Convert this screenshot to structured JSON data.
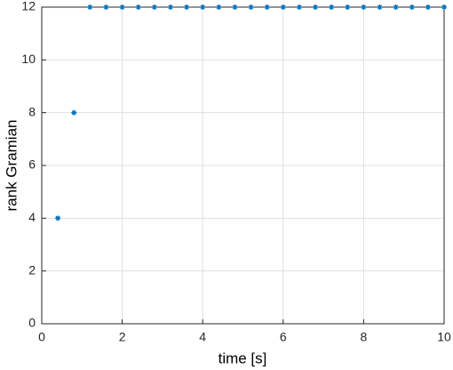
{
  "chart_data": {
    "type": "scatter",
    "x_label": "time [s]",
    "y_label": "rank Gramian",
    "series": [
      {
        "color": "#0072bd",
        "x": [
          0.4,
          0.8,
          1.2,
          1.6,
          2,
          2.4,
          2.8,
          3.2,
          3.6,
          4,
          4.4,
          4.8,
          5.2,
          5.6,
          6,
          6.4,
          6.8,
          7.2,
          7.6,
          8,
          8.4,
          8.8,
          9.2,
          9.6,
          10
        ],
        "values": [
          4,
          8,
          12,
          12,
          12,
          12,
          12,
          12,
          12,
          12,
          12,
          12,
          12,
          12,
          12,
          12,
          12,
          12,
          12,
          12,
          12,
          12,
          12,
          12,
          12
        ]
      }
    ],
    "xlim": [
      0,
      10
    ],
    "xticks": [
      0,
      2,
      4,
      6,
      8,
      10
    ],
    "ylim": [
      0,
      12
    ],
    "yticks": [
      0,
      2,
      4,
      6,
      8,
      10,
      12
    ],
    "grid": true
  }
}
